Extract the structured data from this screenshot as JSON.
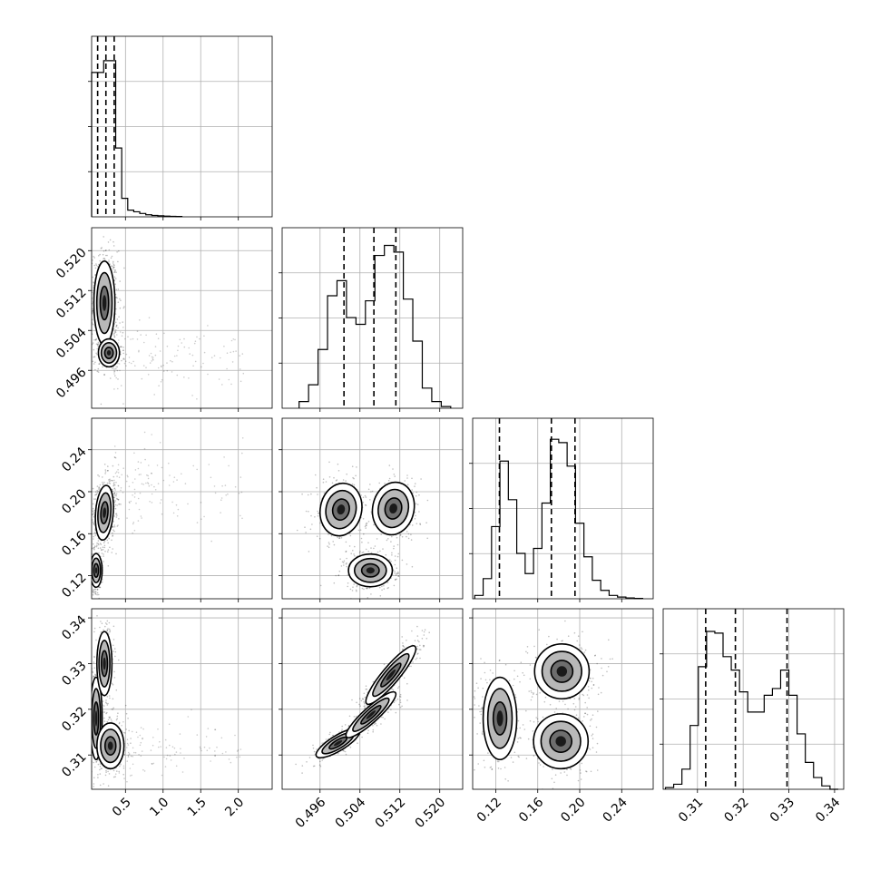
{
  "chart_data": {
    "type": "corner",
    "title": "",
    "grid": true,
    "variables": [
      {
        "label": "",
        "range": [
          0.05,
          2.45
        ],
        "ticks": [
          0.5,
          1.0,
          1.5,
          2.0
        ],
        "tick_labels": [
          "0.5",
          "1.0",
          "1.5",
          "2.0"
        ],
        "quantiles": [
          0.13,
          0.24,
          0.35
        ],
        "histogram": {
          "bin_edges": [
            0.05,
            0.13,
            0.21,
            0.29,
            0.37,
            0.45,
            0.53,
            0.61,
            0.69,
            0.77,
            0.85,
            0.93,
            1.01,
            1.09,
            1.17,
            1.25
          ],
          "density": [
            0.86,
            0.86,
            0.93,
            0.93,
            0.41,
            0.11,
            0.04,
            0.03,
            0.02,
            0.012,
            0.008,
            0.006,
            0.004,
            0.003,
            0.002
          ]
        }
      },
      {
        "label": "",
        "range": [
          0.4884,
          0.5246
        ],
        "ticks": [
          0.496,
          0.504,
          0.512,
          0.52
        ],
        "tick_labels": [
          "0.496",
          "0.504",
          "0.512",
          "0.520"
        ],
        "quantiles": [
          0.5008,
          0.5068,
          0.5112
        ],
        "histogram": {
          "bin_edges": [
            0.4918,
            0.4937,
            0.4956,
            0.4975,
            0.4994,
            0.5013,
            0.5032,
            0.5051,
            0.507,
            0.5089,
            0.5108,
            0.5127,
            0.5146,
            0.5165,
            0.5184,
            0.5203,
            0.5222
          ],
          "density": [
            0.04,
            0.14,
            0.35,
            0.67,
            0.76,
            0.54,
            0.5,
            0.64,
            0.91,
            0.97,
            0.93,
            0.65,
            0.4,
            0.12,
            0.04,
            0.01
          ]
        }
      },
      {
        "label": "",
        "range": [
          0.098,
          0.27
        ],
        "ticks": [
          0.12,
          0.16,
          0.2,
          0.24
        ],
        "tick_labels": [
          "0.12",
          "0.16",
          "0.20",
          "0.24"
        ],
        "quantiles": [
          0.1235,
          0.173,
          0.1955
        ],
        "histogram": {
          "bin_edges": [
            0.1,
            0.108,
            0.116,
            0.124,
            0.132,
            0.14,
            0.148,
            0.156,
            0.164,
            0.172,
            0.18,
            0.188,
            0.196,
            0.204,
            0.212,
            0.22,
            0.228,
            0.236,
            0.244,
            0.252,
            0.26
          ],
          "density": [
            0.02,
            0.12,
            0.43,
            0.82,
            0.59,
            0.27,
            0.15,
            0.3,
            0.57,
            0.95,
            0.93,
            0.79,
            0.45,
            0.25,
            0.11,
            0.05,
            0.02,
            0.01,
            0.005,
            0.002
          ]
        }
      },
      {
        "label": "",
        "range": [
          0.3025,
          0.342
        ],
        "ticks": [
          0.31,
          0.32,
          0.33,
          0.34
        ],
        "tick_labels": [
          "0.31",
          "0.32",
          "0.33",
          "0.34"
        ],
        "quantiles": [
          0.3118,
          0.3183,
          0.3296
        ],
        "histogram": {
          "bin_edges": [
            0.303,
            0.3048,
            0.3066,
            0.3084,
            0.3102,
            0.312,
            0.3138,
            0.3156,
            0.3174,
            0.3192,
            0.321,
            0.3228,
            0.3246,
            0.3264,
            0.3282,
            0.33,
            0.3318,
            0.3336,
            0.3354,
            0.3372,
            0.339,
            0.3408
          ],
          "density": [
            0.01,
            0.03,
            0.12,
            0.38,
            0.73,
            0.94,
            0.93,
            0.79,
            0.71,
            0.58,
            0.46,
            0.46,
            0.56,
            0.6,
            0.71,
            0.56,
            0.33,
            0.16,
            0.07,
            0.02,
            0.0
          ]
        }
      }
    ],
    "modes_2d": [
      {
        "x": 0,
        "y": 1,
        "modes": [
          {
            "center": [
              0.22,
              0.5095
            ],
            "spread": [
              0.07,
              0.0042
            ],
            "rho": 0.0,
            "weight": 0.75
          },
          {
            "center": [
              0.28,
              0.4995
            ],
            "spread": [
              0.07,
              0.0014
            ],
            "rho": 0.0,
            "weight": 0.25
          }
        ],
        "tail": {
          "x_range": [
            0.35,
            2.1
          ],
          "y_center": 0.4985,
          "y_spread": 0.0035
        }
      },
      {
        "x": 0,
        "y": 2,
        "modes": [
          {
            "center": [
              0.11,
              0.125
            ],
            "spread": [
              0.04,
              0.008
            ],
            "rho": 0.0,
            "weight": 0.35
          },
          {
            "center": [
              0.22,
              0.18
            ],
            "spread": [
              0.06,
              0.013
            ],
            "rho": 0.2,
            "weight": 0.65
          }
        ],
        "tail": {
          "x_range": [
            0.35,
            2.1
          ],
          "y_center": 0.205,
          "y_spread": 0.018
        }
      },
      {
        "x": 0,
        "y": 3,
        "modes": [
          {
            "center": [
              0.11,
              0.318
            ],
            "spread": [
              0.04,
              0.0045
            ],
            "rho": 0.0,
            "weight": 0.4
          },
          {
            "center": [
              0.22,
              0.33
            ],
            "spread": [
              0.05,
              0.0035
            ],
            "rho": 0.0,
            "weight": 0.3
          },
          {
            "center": [
              0.3,
              0.312
            ],
            "spread": [
              0.09,
              0.0025
            ],
            "rho": 0.0,
            "weight": 0.3
          }
        ],
        "tail": {
          "x_range": [
            0.35,
            2.1
          ],
          "y_center": 0.311,
          "y_spread": 0.003
        }
      },
      {
        "x": 1,
        "y": 2,
        "modes": [
          {
            "center": [
              0.5002,
              0.183
            ],
            "spread": [
              0.0021,
              0.0125
            ],
            "rho": 0.1,
            "weight": 0.33
          },
          {
            "center": [
              0.5107,
              0.184
            ],
            "spread": [
              0.0021,
              0.0125
            ],
            "rho": 0.1,
            "weight": 0.34
          },
          {
            "center": [
              0.5061,
              0.125
            ],
            "spread": [
              0.0022,
              0.0078
            ],
            "rho": 0.0,
            "weight": 0.33
          }
        ]
      },
      {
        "x": 1,
        "y": 3,
        "modes": [
          {
            "center": [
              0.4996,
              0.3126
            ],
            "spread": [
              0.0022,
              0.0016
            ],
            "rho": 0.8,
            "weight": 0.3
          },
          {
            "center": [
              0.5062,
              0.3188
            ],
            "spread": [
              0.0025,
              0.0025
            ],
            "rho": 0.9,
            "weight": 0.35
          },
          {
            "center": [
              0.5102,
              0.3275
            ],
            "spread": [
              0.0025,
              0.0032
            ],
            "rho": 0.9,
            "weight": 0.35
          }
        ]
      },
      {
        "x": 2,
        "y": 3,
        "modes": [
          {
            "center": [
              0.124,
              0.318
            ],
            "spread": [
              0.008,
              0.0045
            ],
            "rho": 0.0,
            "weight": 0.34
          },
          {
            "center": [
              0.183,
              0.3283
            ],
            "spread": [
              0.013,
              0.003
            ],
            "rho": 0.0,
            "weight": 0.33
          },
          {
            "center": [
              0.182,
              0.313
            ],
            "spread": [
              0.013,
              0.003
            ],
            "rho": 0.0,
            "weight": 0.33
          }
        ]
      }
    ]
  }
}
